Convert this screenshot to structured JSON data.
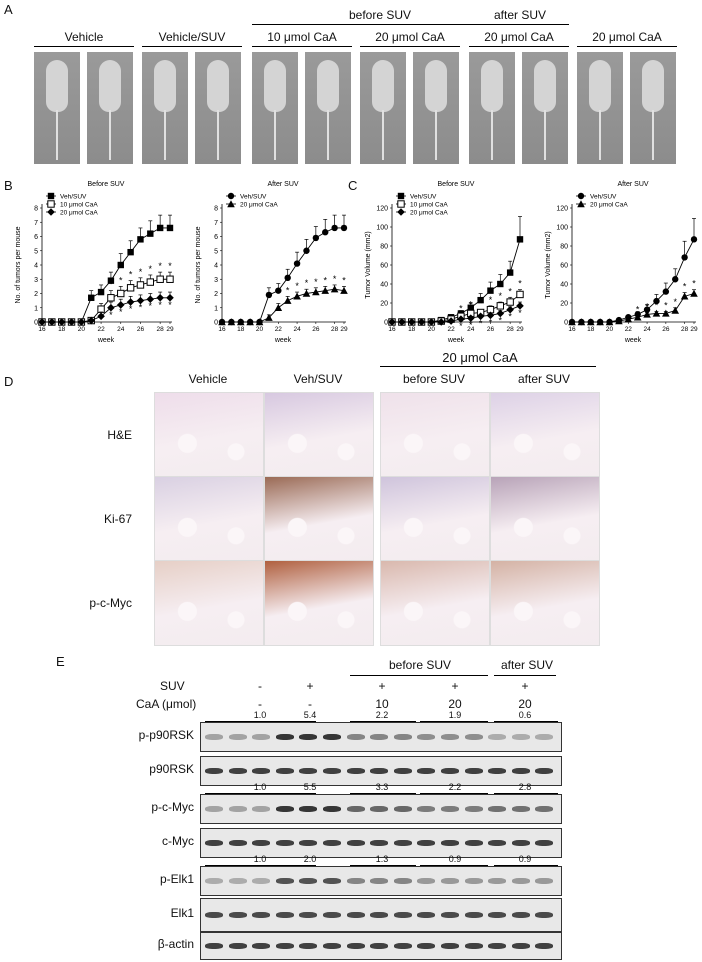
{
  "panels": {
    "A": "A",
    "B": "B",
    "C": "C",
    "D": "D",
    "E": "E"
  },
  "panelA": {
    "group_labels": [
      "Vehicle",
      "Vehicle/SUV",
      "10 μmol CaA",
      "20 μmol CaA",
      "20 μmol CaA",
      "20 μmol CaA"
    ],
    "before_label": "before  SUV",
    "after_label": "after  SUV"
  },
  "chart_data": [
    {
      "type": "line",
      "title": "Before SUV",
      "xlabel": "week",
      "ylabel": "No. of tumors per mouse",
      "x": [
        16,
        17,
        18,
        19,
        20,
        21,
        22,
        23,
        24,
        25,
        26,
        27,
        28,
        29
      ],
      "xticks": [
        16,
        18,
        20,
        22,
        24,
        26,
        28,
        29
      ],
      "ylim": [
        0,
        8
      ],
      "yticks": [
        0,
        1,
        2,
        3,
        4,
        5,
        6,
        7,
        8
      ],
      "series": [
        {
          "name": "Veh/SUV",
          "marker": "filled-square",
          "values": [
            0,
            0,
            0,
            0,
            0,
            1.7,
            2.1,
            2.9,
            4.0,
            4.9,
            5.8,
            6.2,
            6.6,
            6.6
          ],
          "err": [
            0,
            0,
            0,
            0,
            0,
            0.5,
            0.5,
            0.6,
            0.8,
            0.8,
            0.8,
            0.9,
            0.9,
            0.9
          ]
        },
        {
          "name": "10 μmol CaA",
          "marker": "open-square",
          "values": [
            0,
            0,
            0,
            0,
            0,
            0.1,
            0.9,
            1.7,
            2.0,
            2.4,
            2.6,
            2.8,
            3.0,
            3.0
          ],
          "err": [
            0,
            0,
            0,
            0,
            0,
            0.2,
            0.4,
            0.5,
            0.5,
            0.5,
            0.5,
            0.5,
            0.5,
            0.5
          ]
        },
        {
          "name": "20 μmol CaA",
          "marker": "filled-diamond",
          "values": [
            0,
            0,
            0,
            0,
            0,
            0.1,
            0.4,
            1.0,
            1.2,
            1.4,
            1.5,
            1.6,
            1.7,
            1.7
          ],
          "err": [
            0,
            0,
            0,
            0,
            0,
            0.1,
            0.3,
            0.4,
            0.4,
            0.4,
            0.4,
            0.4,
            0.4,
            0.4
          ]
        }
      ],
      "annotations": [
        "*"
      ]
    },
    {
      "type": "line",
      "title": "After SUV",
      "xlabel": "week",
      "ylabel": "No. of tumors per mouse",
      "x": [
        16,
        17,
        18,
        19,
        20,
        21,
        22,
        23,
        24,
        25,
        26,
        27,
        28,
        29
      ],
      "xticks": [
        16,
        18,
        20,
        22,
        24,
        26,
        28,
        29
      ],
      "ylim": [
        0,
        8
      ],
      "yticks": [
        0,
        1,
        2,
        3,
        4,
        5,
        6,
        7,
        8
      ],
      "series": [
        {
          "name": "Veh/SUV",
          "marker": "filled-circle",
          "values": [
            0,
            0,
            0,
            0,
            0,
            1.9,
            2.2,
            3.1,
            4.1,
            5.0,
            5.9,
            6.3,
            6.6,
            6.6
          ],
          "err": [
            0,
            0,
            0,
            0,
            0,
            0.5,
            0.5,
            0.6,
            0.8,
            0.8,
            0.8,
            0.9,
            0.9,
            0.9
          ]
        },
        {
          "name": "20 μmol CaA",
          "marker": "filled-triangle",
          "values": [
            0,
            0,
            0,
            0,
            0,
            0.3,
            1.0,
            1.5,
            1.8,
            2.0,
            2.1,
            2.2,
            2.3,
            2.2
          ],
          "err": [
            0,
            0,
            0,
            0,
            0,
            0.2,
            0.3,
            0.3,
            0.3,
            0.3,
            0.3,
            0.3,
            0.3,
            0.3
          ]
        }
      ],
      "annotations": [
        "*"
      ]
    },
    {
      "type": "line",
      "title": "Before SUV",
      "xlabel": "week",
      "ylabel": "Tumor Volume (mm2)",
      "x": [
        16,
        17,
        18,
        19,
        20,
        21,
        22,
        23,
        24,
        25,
        26,
        27,
        28,
        29
      ],
      "xticks": [
        16,
        18,
        20,
        22,
        24,
        26,
        28,
        29
      ],
      "ylim": [
        0,
        120
      ],
      "yticks": [
        0,
        20,
        40,
        60,
        80,
        100,
        120
      ],
      "series": [
        {
          "name": "Veh/SUV",
          "marker": "filled-square",
          "values": [
            0,
            0,
            0,
            0,
            0,
            2,
            5,
            9,
            15,
            23,
            33,
            40,
            52,
            87
          ],
          "err": [
            0,
            0,
            0,
            0,
            0,
            1,
            2,
            3,
            5,
            7,
            9,
            10,
            12,
            24
          ]
        },
        {
          "name": "10 μmol CaA",
          "marker": "open-square",
          "values": [
            0,
            0,
            0,
            0,
            0,
            1,
            3,
            6,
            9,
            10,
            13,
            17,
            21,
            29
          ],
          "err": [
            0,
            0,
            0,
            0,
            0,
            1,
            2,
            2,
            3,
            3,
            4,
            4,
            5,
            5
          ]
        },
        {
          "name": "20 μmol CaA",
          "marker": "filled-diamond",
          "values": [
            0,
            0,
            0,
            0,
            0,
            0,
            1,
            3,
            4,
            6,
            7,
            9,
            13,
            17
          ],
          "err": [
            0,
            0,
            0,
            0,
            0,
            0,
            1,
            1,
            2,
            2,
            2,
            3,
            3,
            4
          ]
        }
      ],
      "annotations": [
        "*"
      ]
    },
    {
      "type": "line",
      "title": "After SUV",
      "xlabel": "week",
      "ylabel": "Tumor Volume (mm2)",
      "x": [
        16,
        17,
        18,
        19,
        20,
        21,
        22,
        23,
        24,
        25,
        26,
        27,
        28,
        29
      ],
      "xticks": [
        16,
        18,
        20,
        22,
        24,
        26,
        28,
        29
      ],
      "ylim": [
        0,
        120
      ],
      "yticks": [
        0,
        20,
        40,
        60,
        80,
        100,
        120
      ],
      "series": [
        {
          "name": "Veh/SUV",
          "marker": "filled-circle",
          "values": [
            0,
            0,
            0,
            0,
            0,
            2,
            5,
            8,
            13,
            22,
            32,
            45,
            68,
            87
          ],
          "err": [
            0,
            0,
            0,
            0,
            0,
            1,
            2,
            3,
            5,
            7,
            9,
            11,
            17,
            22
          ]
        },
        {
          "name": "20 μmol CaA",
          "marker": "filled-triangle",
          "values": [
            0,
            0,
            0,
            0,
            0,
            1,
            3,
            5,
            8,
            9,
            9,
            12,
            27,
            30
          ],
          "err": [
            0,
            0,
            0,
            0,
            0,
            1,
            1,
            2,
            2,
            2,
            2,
            3,
            4,
            4
          ]
        }
      ],
      "annotations": [
        "*"
      ]
    }
  ],
  "panelD": {
    "header_group": "20 μmol CaA",
    "columns": [
      "Vehicle",
      "Veh/SUV",
      "before SUV",
      "after SUV"
    ],
    "rows": [
      "H&E",
      "Ki-67",
      "p-c-Myc"
    ]
  },
  "panelE": {
    "header_before": "before SUV",
    "header_after": "after SUV",
    "suv_label": "SUV",
    "caa_label": "CaA  (μmol)",
    "suv_values": [
      "-",
      "+",
      "+",
      "+",
      "+"
    ],
    "caa_values": [
      "-",
      "-",
      "10",
      "20",
      "20"
    ],
    "blots": [
      {
        "label": "p-p90RSK",
        "quant": [
          "1.0",
          "5.4",
          "2.2",
          "1.9",
          "0.6"
        ]
      },
      {
        "label": "p90RSK",
        "quant": []
      },
      {
        "label": "p-c-Myc",
        "quant": [
          "1.0",
          "5.5",
          "3.3",
          "2.2",
          "2.8"
        ]
      },
      {
        "label": "c-Myc",
        "quant": []
      },
      {
        "label": "p-Elk1",
        "quant": [
          "1.0",
          "2.0",
          "1.3",
          "0.9",
          "0.9"
        ]
      },
      {
        "label": "Elk1",
        "quant": []
      },
      {
        "label": "β-actin",
        "quant": []
      }
    ]
  }
}
